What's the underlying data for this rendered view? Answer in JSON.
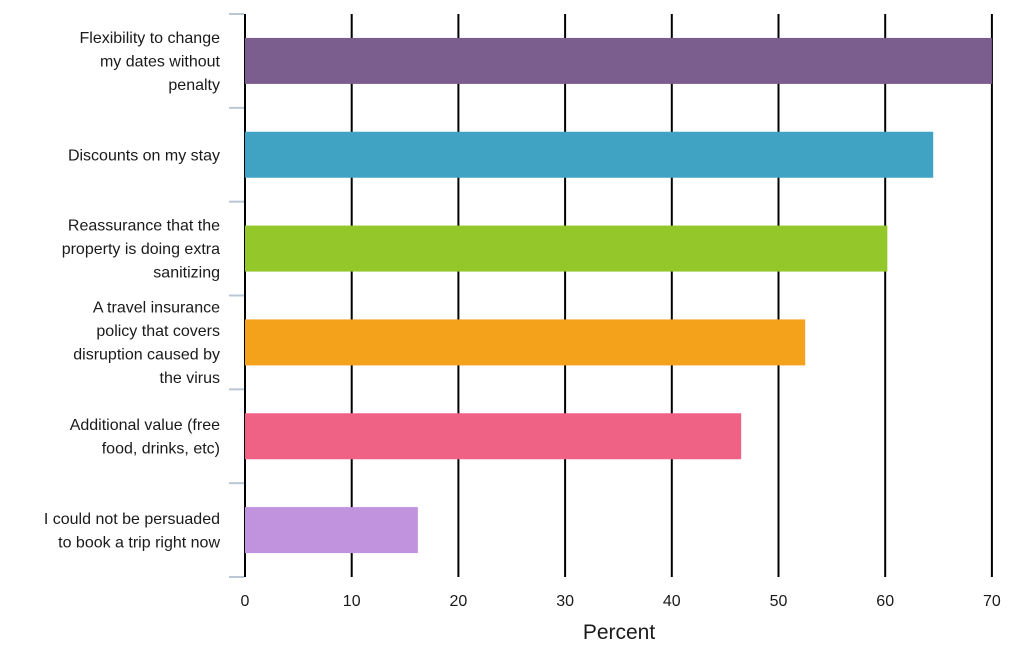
{
  "chart_data": {
    "type": "bar",
    "orientation": "horizontal",
    "categories": [
      "Flexibility to change my dates without penalty",
      "Discounts on my stay",
      "Reassurance that the property is doing extra sanitizing",
      "A travel insurance policy that covers disruption caused by the virus",
      "Additional value (free food, drinks, etc)",
      "I could not be persuaded to book a trip right now"
    ],
    "category_lines": [
      [
        "Flexibility to change",
        "my dates without",
        "penalty"
      ],
      [
        "Discounts on my stay"
      ],
      [
        "Reassurance that the",
        "property is doing extra",
        "sanitizing"
      ],
      [
        "A travel insurance",
        "policy that covers",
        "disruption caused by",
        "the virus"
      ],
      [
        "Additional value (free",
        "food, drinks, etc)"
      ],
      [
        "I could not be persuaded",
        "to book a trip right now"
      ]
    ],
    "values": [
      70,
      64.5,
      60.2,
      52.5,
      46.5,
      16.2
    ],
    "colors": [
      "#7b5e8e",
      "#41a3c4",
      "#93c72a",
      "#f4a21c",
      "#ef6285",
      "#c192dd"
    ],
    "xlabel": "Percent",
    "ylabel": "",
    "title": "",
    "xlim": [
      0,
      70
    ],
    "xticks": [
      0,
      10,
      20,
      30,
      40,
      50,
      60,
      70
    ],
    "grid": "vertical",
    "legend": "none"
  }
}
